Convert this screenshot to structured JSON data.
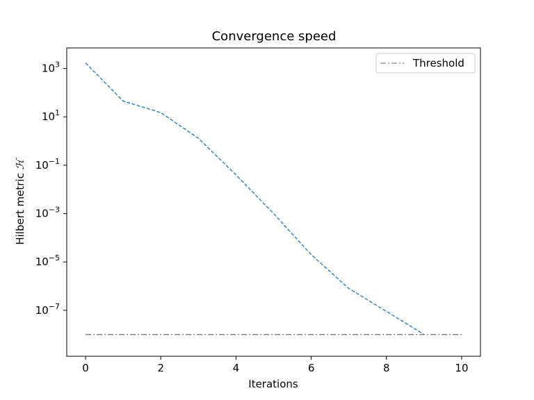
{
  "chart_data": {
    "type": "line",
    "title": "Convergence speed",
    "xlabel": "Iterations",
    "ylabel_text": "Hilbert metric",
    "ylabel_symbol": "ℋ",
    "yscale": "log",
    "xlim": [
      -0.5,
      10.5
    ],
    "ylim_exponent": [
      -8.9,
      3.85
    ],
    "x_ticks": [
      0,
      2,
      4,
      6,
      8,
      10
    ],
    "y_tick_exponents": [
      3,
      1,
      -1,
      -3,
      -5,
      -7
    ],
    "grid": false,
    "legend_position": "top-right",
    "series": [
      {
        "name": "Hilbert metric",
        "in_legend": false,
        "color": "#1f77b4",
        "style": "dashed",
        "x": [
          0,
          1,
          2,
          3,
          4,
          5,
          6,
          7,
          8,
          9
        ],
        "y": [
          1700,
          45,
          15,
          1.3,
          0.04,
          0.001,
          2e-05,
          8e-07,
          9e-08,
          1e-08
        ]
      },
      {
        "name": "Threshold",
        "in_legend": true,
        "color": "#808080",
        "style": "dashdot",
        "x": [
          0,
          10
        ],
        "y": [
          1e-08,
          1e-08
        ]
      }
    ]
  }
}
